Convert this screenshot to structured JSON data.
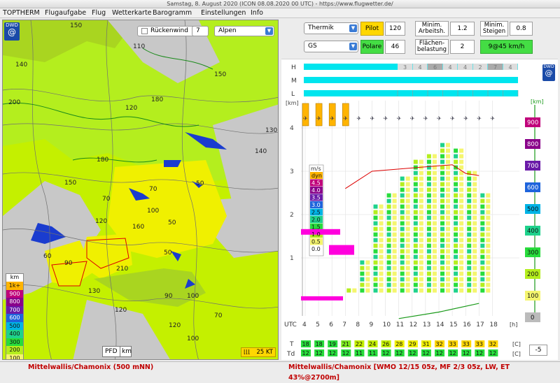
{
  "window": {
    "title": "Samstag, 8. August 2020 (ICON 08.08.2020 00 UTC) - https://www.flugwetter.de/"
  },
  "menu": [
    "TOPTHERM",
    "Flugaufgabe",
    "Flug",
    "Wetterkarte",
    "Barogramm",
    "Einstellungen",
    "Info"
  ],
  "map": {
    "logo": "DWD",
    "rueckenwind_label": "Rückenwind",
    "rueckenwind_value": "7",
    "region": "Alpen",
    "pfd_label": "PFD",
    "km_label": "km",
    "wind_label": "25 KT",
    "legend_title": "km",
    "legend": [
      {
        "label": "1k+",
        "color": "#ffb400"
      },
      {
        "label": "900",
        "color": "#c0007a"
      },
      {
        "label": "800",
        "color": "#8a008a"
      },
      {
        "label": "700",
        "color": "#6a1aa8"
      },
      {
        "label": "600",
        "color": "#1e64dc"
      },
      {
        "label": "500",
        "color": "#00b4e6"
      },
      {
        "label": "400",
        "color": "#1ed28c"
      },
      {
        "label": "300",
        "color": "#28dc3c"
      },
      {
        "label": "200",
        "color": "#b4ee1e"
      },
      {
        "label": "100",
        "color": "#f5f56e"
      }
    ],
    "contour_labels": [
      "150",
      "140",
      "200",
      "110",
      "180",
      "120",
      "150",
      "130",
      "140",
      "180",
      "150",
      "70",
      "50",
      "70",
      "100",
      "50",
      "120",
      "60",
      "160",
      "90",
      "210",
      "50",
      "130",
      "90",
      "100",
      "120",
      "120",
      "100",
      "70"
    ]
  },
  "controls": {
    "thermik": "Thermik",
    "pilot_label": "Pilot",
    "pilot_value": "120",
    "min_arbeitsh_label": "Minim. Arbeitsh.",
    "min_arbeitsh_value": "1.2",
    "min_steigen_label": "Minim. Steigen",
    "min_steigen_value": "0.8",
    "gs": "GS",
    "polare_label": "Polare",
    "polare_value": "46",
    "flaechen_label": "Flächen- belastung",
    "flaechen_value": "2",
    "speed": "9@45 km/h"
  },
  "sounding": {
    "logo": "DWD",
    "rows_left": [
      "H",
      "M",
      "L"
    ],
    "h_cells": [
      "3",
      "4",
      "6",
      "4",
      "4",
      "2",
      "7",
      "4"
    ],
    "yaxis_unit": "[km]",
    "yaxis": [
      "4",
      "3",
      "2",
      "1"
    ],
    "right_unit": "[km]",
    "right_scale": [
      {
        "label": "900",
        "color": "#c0007a"
      },
      {
        "label": "800",
        "color": "#8a008a"
      },
      {
        "label": "700",
        "color": "#6a1aa8"
      },
      {
        "label": "600",
        "color": "#1e64dc"
      },
      {
        "label": "500",
        "color": "#00b4e6"
      },
      {
        "label": "400",
        "color": "#1ed28c"
      },
      {
        "label": "300",
        "color": "#28dc3c"
      },
      {
        "label": "200",
        "color": "#b4ee1e"
      },
      {
        "label": "100",
        "color": "#f5f56e"
      },
      {
        "label": "0",
        "color": "#bbbbbb"
      }
    ],
    "ms_legend_title": "m/s",
    "ms_legend": [
      {
        "label": "dyn",
        "color": "#ffb400"
      },
      {
        "label": "4.5",
        "color": "#c0007a"
      },
      {
        "label": "4.0",
        "color": "#8a008a"
      },
      {
        "label": "3.5",
        "color": "#6a1aa8"
      },
      {
        "label": "3.0",
        "color": "#1e64dc"
      },
      {
        "label": "2.5",
        "color": "#00b4e6"
      },
      {
        "label": "2.0",
        "color": "#1ed28c"
      },
      {
        "label": "1.5",
        "color": "#28dc3c"
      },
      {
        "label": "1.0",
        "color": "#b4ee1e"
      },
      {
        "label": "0.5",
        "color": "#f5f56e"
      },
      {
        "label": "0.0",
        "color": "#ffffff"
      }
    ],
    "utc_label": "UTC",
    "hours": [
      "4",
      "5",
      "6",
      "7",
      "8",
      "9",
      "10",
      "11",
      "12",
      "13",
      "14",
      "15",
      "16",
      "17",
      "18"
    ],
    "hours_unit": "[h]",
    "t_label": "T",
    "t_values": [
      "18",
      "18",
      "19",
      "21",
      "22",
      "24",
      "26",
      "28",
      "29",
      "31",
      "32",
      "33",
      "33",
      "33",
      "32"
    ],
    "td_label": "Td",
    "td_values": [
      "12",
      "12",
      "12",
      "12",
      "11",
      "11",
      "12",
      "12",
      "12",
      "12",
      "12",
      "12",
      "12",
      "12",
      "12"
    ],
    "unit_c": "[C]",
    "offset": "-5"
  },
  "status": {
    "left": "Mittelwallis/Chamonix (500 mNN)",
    "right": "Mittelwallis/Chamonix [WMO 12/15 05z, MF 2/3 05z, LW, ET  43%@2700m]"
  }
}
